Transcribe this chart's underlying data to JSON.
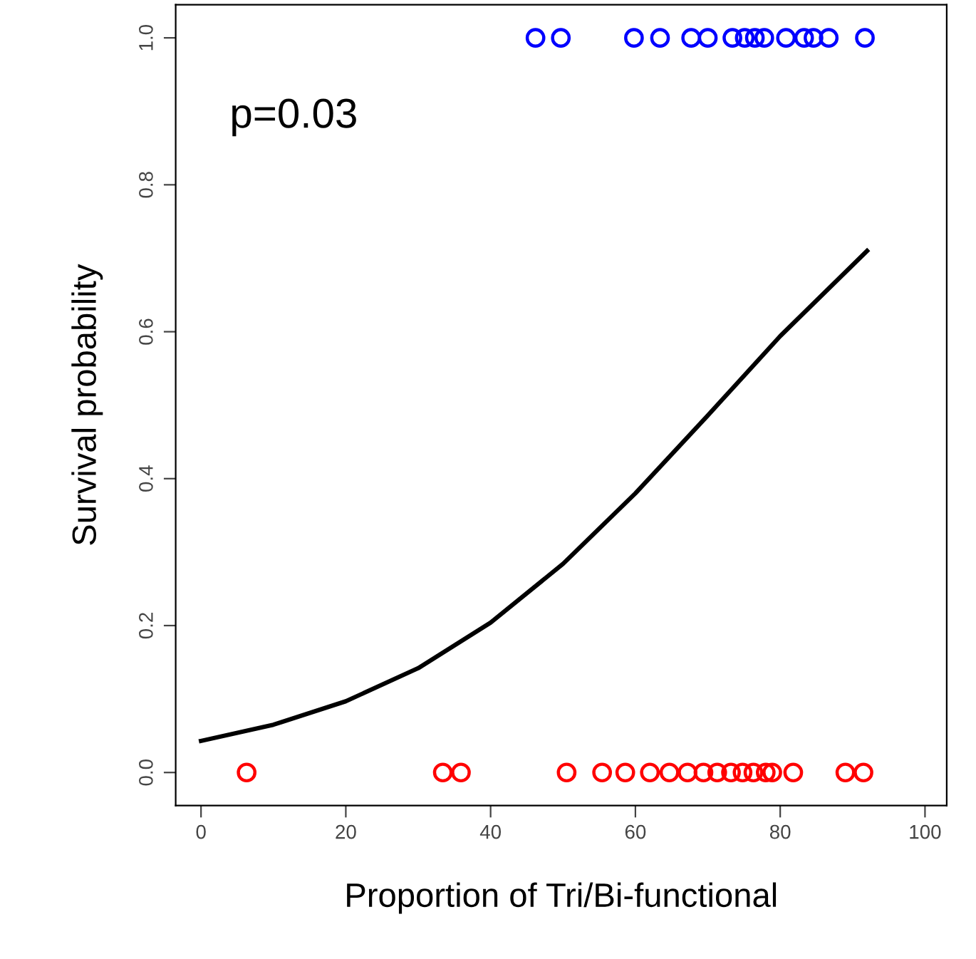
{
  "chart_data": {
    "type": "scatter",
    "xlabel": "Proportion of Tri/Bi-functional",
    "ylabel": "Survival probability",
    "xlim": [
      -3.5,
      103
    ],
    "ylim": [
      -0.045,
      1.045
    ],
    "xticks": [
      0,
      20,
      40,
      60,
      80,
      100
    ],
    "yticks": [
      {
        "value": 0,
        "label": "0.0"
      },
      0.2,
      0.4,
      0.6,
      0.8,
      {
        "value": 1,
        "label": "1.0"
      }
    ],
    "marker": "circle",
    "grid": false,
    "legend": false,
    "annotations": [
      "p=0.03"
    ],
    "series": [
      {
        "color": "#0000ff",
        "x": [
          46.2,
          49.7,
          59.8,
          63.4,
          67.7,
          70.0,
          73.4,
          75.1,
          76.5,
          77.8,
          80.8,
          83.3,
          84.6,
          86.7,
          91.7
        ],
        "values": [
          1,
          1,
          1,
          1,
          1,
          1,
          1,
          1,
          1,
          1,
          1,
          1,
          1,
          1,
          1
        ]
      },
      {
        "color": "#ff0000",
        "x": [
          6.3,
          33.4,
          35.9,
          50.5,
          55.4,
          58.6,
          62.0,
          64.7,
          67.2,
          69.4,
          71.3,
          73.2,
          74.8,
          76.3,
          78.0,
          78.9,
          81.8,
          89.0,
          91.5
        ],
        "values": [
          0,
          0,
          0,
          0,
          0,
          0,
          0,
          0,
          0,
          0,
          0,
          0,
          0,
          0,
          0,
          0,
          0,
          0,
          0
        ]
      },
      {
        "color": "#000000",
        "type": "line",
        "marker": "none",
        "x": [
          0,
          10,
          20,
          30,
          40,
          50,
          60,
          70,
          80,
          92
        ],
        "values": [
          0.043,
          0.065,
          0.097,
          0.142,
          0.204,
          0.284,
          0.38,
          0.486,
          0.594,
          0.71
        ]
      }
    ]
  }
}
